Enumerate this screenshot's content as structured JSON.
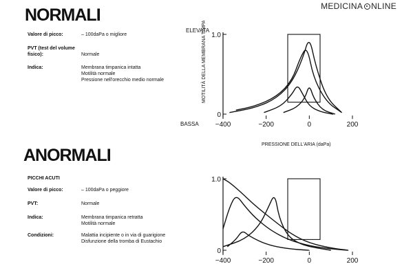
{
  "brand": {
    "text_left": "MEDICINA",
    "text_right": "NLINE",
    "logo": "o-circle-icon"
  },
  "normal_panel": {
    "heading": "NORMALI",
    "rows": [
      {
        "label": "Valore di picco:",
        "value": "– 100daPa o migliore"
      },
      {
        "label": "PVT (test del volume fisico):",
        "value": "Normale"
      },
      {
        "label": "Indica:",
        "value": "Membrana timpanica intatta\nMotilità normale\nPressione nell'orecchio medio normale"
      }
    ]
  },
  "abnormal_panel": {
    "heading": "ANORMALI",
    "subheading": "PICCHI ACUTI",
    "rows": [
      {
        "label": "Valore di picco:",
        "value": "– 100daPa o peggiore"
      },
      {
        "label": "PVT:",
        "value": "Normale"
      },
      {
        "label": "Indica:",
        "value": "Membrana timpanica retratta\nMotilità normale"
      },
      {
        "label": "Condizioni:",
        "value": "Malattia incipiente o in via di guarigione\nDisfunzione della tromba di Eustachio"
      }
    ]
  },
  "chart_data": [
    {
      "type": "line",
      "title": "",
      "xlabel": "PRESSIONE DELL'ARIA (daPa)",
      "ylabel": "MOTILITÀ DELLA MEMBRANA TIMPANICA",
      "y_top_label": "ELEVATA",
      "y_bottom_label": "BASSA",
      "xlim": [
        -400,
        200
      ],
      "ylim": [
        0,
        1.0
      ],
      "x_ticks": [
        "−400",
        "−200",
        "0",
        "200"
      ],
      "y_ticks": [
        "1.0",
        "0"
      ],
      "normal_range_box": {
        "x": [
          -100,
          50
        ],
        "y": [
          0.15,
          1.0
        ]
      },
      "series": [
        {
          "x": [
            -370,
            -250,
            -150,
            -80,
            -30,
            0,
            30,
            80,
            150
          ],
          "values": [
            0.02,
            0.08,
            0.2,
            0.4,
            0.7,
            0.98,
            0.6,
            0.2,
            0.02
          ]
        },
        {
          "x": [
            -340,
            -250,
            -150,
            -80,
            -40,
            -10,
            20,
            80,
            150
          ],
          "values": [
            0.05,
            0.1,
            0.22,
            0.42,
            0.72,
            0.85,
            0.45,
            0.15,
            0.02
          ]
        },
        {
          "x": [
            -210,
            -130,
            -80,
            -55,
            -30,
            0,
            50,
            110
          ],
          "values": [
            0.02,
            0.1,
            0.25,
            0.37,
            0.25,
            0.1,
            0.03,
            0.0
          ]
        },
        {
          "x": [
            -120,
            -60,
            -20,
            0,
            20,
            60,
            120
          ],
          "values": [
            0.02,
            0.08,
            0.2,
            0.37,
            0.2,
            0.05,
            0.0
          ]
        }
      ]
    },
    {
      "type": "line",
      "title": "",
      "xlim": [
        -400,
        200
      ],
      "ylim": [
        0,
        1.0
      ],
      "x_ticks": [
        "−400",
        "−200",
        "0",
        "200"
      ],
      "y_ticks": [
        "1.0",
        "0"
      ],
      "normal_range_box": {
        "x": [
          -100,
          50
        ],
        "y": [
          0.15,
          1.0
        ]
      },
      "series": [
        {
          "x": [
            -400,
            -370,
            -320,
            -250,
            -150,
            -80,
            0,
            100,
            180
          ],
          "values": [
            1.0,
            0.95,
            0.82,
            0.62,
            0.38,
            0.22,
            0.1,
            0.03,
            0.0
          ]
        },
        {
          "x": [
            -400,
            -370,
            -340,
            -300,
            -250,
            -180,
            -100,
            0,
            100,
            180
          ],
          "values": [
            0.3,
            0.6,
            0.78,
            0.62,
            0.45,
            0.28,
            0.15,
            0.06,
            0.02,
            0.0
          ]
        },
        {
          "x": [
            -400,
            -300,
            -230,
            -190,
            -160,
            -140,
            -100,
            -50,
            0,
            100
          ],
          "values": [
            0.05,
            0.15,
            0.35,
            0.6,
            0.8,
            0.45,
            0.2,
            0.1,
            0.05,
            0.0
          ]
        },
        {
          "x": [
            -380,
            -340,
            -310,
            -280,
            -200,
            -100,
            0
          ],
          "values": [
            0.05,
            0.15,
            0.28,
            0.2,
            0.08,
            0.02,
            0.0
          ]
        }
      ]
    }
  ]
}
